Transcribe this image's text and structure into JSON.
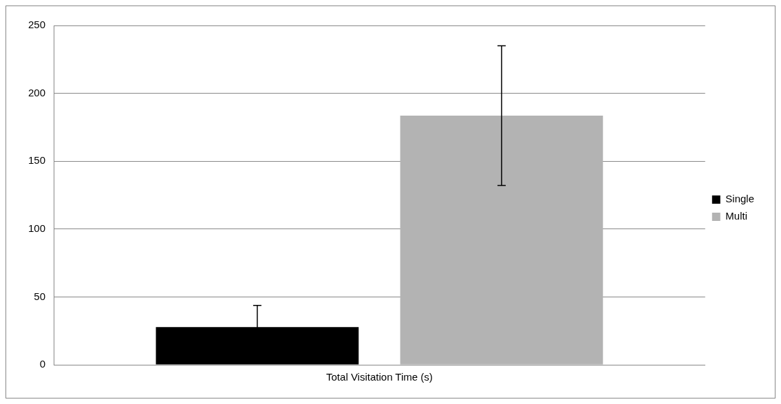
{
  "chart_data": {
    "type": "bar",
    "categories": [
      "Total Visitation Time (s)"
    ],
    "series": [
      {
        "name": "Single",
        "color": "#000000",
        "values": [
          27.8
        ],
        "errors": [
          16
        ]
      },
      {
        "name": "Multi",
        "color": "#b3b3b3",
        "values": [
          183.6
        ],
        "errors": [
          51.5
        ]
      }
    ],
    "ylim": [
      0,
      250
    ],
    "yticks": [
      0,
      50,
      100,
      150,
      200,
      250
    ],
    "grid": "y",
    "legend": "right"
  }
}
